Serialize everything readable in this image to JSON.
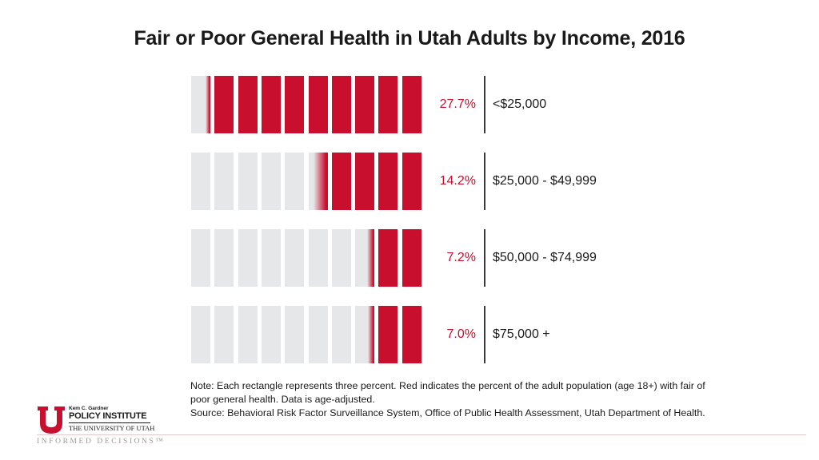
{
  "chart_data": {
    "type": "pictograph",
    "title": "Fair or Poor General Health in Utah Adults by Income, 2016",
    "unit_per_rectangle": 3,
    "rectangles_per_row": 10,
    "categories": [
      "<$25,000",
      "$25,000 - $49,999",
      "$50,000 - $74,999",
      "$75,000 +"
    ],
    "values": [
      27.7,
      14.2,
      7.2,
      7.0
    ],
    "value_labels": [
      "27.7%",
      "14.2%",
      "7.2%",
      "7.0%"
    ],
    "colors": {
      "highlight": "#c8102e",
      "empty": "#e6e7e8"
    }
  },
  "notes": {
    "line1": "Note: Each rectangle represents three percent. Red indicates the percent of the adult population (age 18+) with fair of",
    "line2": "poor general health. Data is age-adjusted.",
    "line3": "Source: Behavioral Risk Factor Surveillance System, Office of Public Health Assessment, Utah Department of Health."
  },
  "logo": {
    "small": "Kem C. Gardner",
    "big": "POLICY INSTITUTE",
    "uni": "THE UNIVERSITY OF UTAH",
    "tagline": "INFORMED DECISIONS™"
  }
}
